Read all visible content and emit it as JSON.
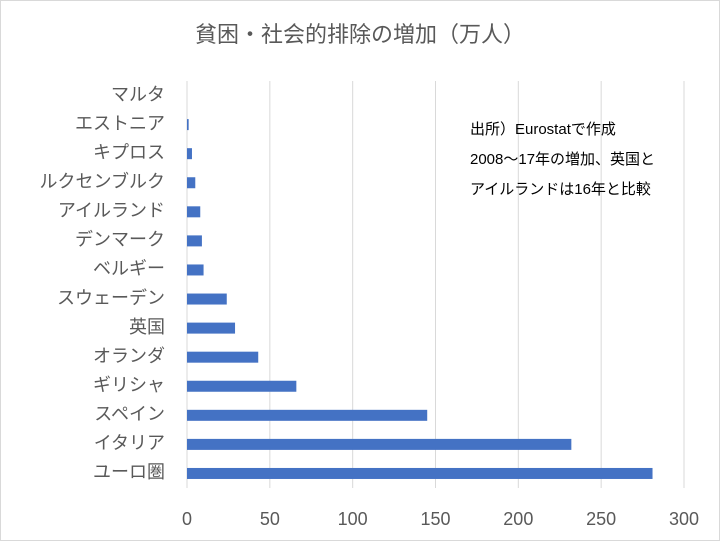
{
  "chart_data": {
    "type": "bar",
    "orientation": "horizontal",
    "title": "貧困・社会的排除の増加（万人）",
    "categories": [
      "マルタ",
      "エストニア",
      "キプロス",
      "ルクセンブルク",
      "アイルランド",
      "デンマーク",
      "ベルギー",
      "スウェーデン",
      "英国",
      "オランダ",
      "ギリシャ",
      "スペイン",
      "イタリア",
      "ユーロ圏"
    ],
    "values": [
      0,
      1,
      3,
      5,
      8,
      9,
      10,
      24,
      29,
      43,
      66,
      145,
      232,
      281
    ],
    "color": "#4472c4",
    "xlim": [
      0,
      300
    ],
    "xticks": [
      0,
      50,
      100,
      150,
      200,
      250,
      300
    ],
    "grid": true,
    "annotation": [
      "出所）Eurostatで作成",
      "2008～17年の増加、英国と",
      "アイルランドは16年と比較"
    ]
  }
}
